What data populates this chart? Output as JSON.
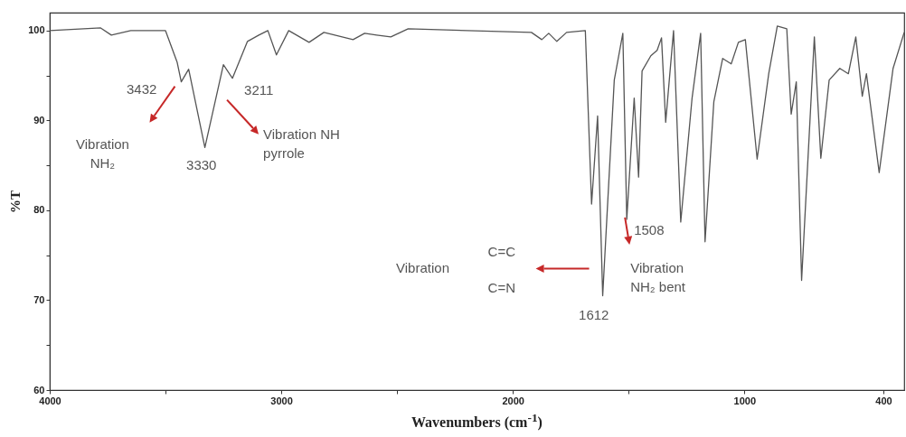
{
  "chart_data": {
    "type": "line",
    "xlabel": "Wavenumbers (cm$^{-1}$)",
    "ylabel": "%T",
    "x": [
      4000,
      3780,
      3734,
      3650,
      3500,
      3450,
      3432,
      3400,
      3330,
      3250,
      3211,
      3146,
      3097,
      3058,
      3021,
      2968,
      2880,
      2816,
      2690,
      2640,
      2588,
      2527,
      2452,
      1920,
      1875,
      1845,
      1810,
      1768,
      1687,
      1660,
      1634,
      1612,
      1562,
      1525,
      1508,
      1476,
      1457,
      1442,
      1404,
      1377,
      1358,
      1340,
      1306,
      1275,
      1226,
      1189,
      1170,
      1132,
      1094,
      1057,
      1026,
      996,
      945,
      895,
      858,
      817,
      798,
      776,
      753,
      698,
      670,
      634,
      588,
      551,
      519,
      491,
      473,
      418,
      358,
      310
    ],
    "values": [
      100,
      100.3,
      99.5,
      100,
      100,
      96.5,
      94.3,
      95.7,
      87,
      96.2,
      94.7,
      98.8,
      99.5,
      100,
      97.3,
      100,
      98.7,
      99.8,
      99,
      99.7,
      99.5,
      99.3,
      100.2,
      99.8,
      99,
      99.7,
      98.8,
      99.8,
      100,
      80.7,
      90.5,
      70.5,
      94.5,
      99.7,
      79,
      92.5,
      83.7,
      95.5,
      97.2,
      97.8,
      99.2,
      89.8,
      100,
      78.7,
      92.5,
      99.7,
      76.5,
      92.1,
      96.9,
      96.3,
      98.7,
      99,
      85.7,
      95.2,
      100.5,
      100.2,
      90.7,
      94.3,
      72.2,
      99.3,
      85.8,
      94.5,
      95.8,
      95.2,
      99.3,
      92.7,
      95.2,
      84.2,
      95.8,
      99.8
    ],
    "color": "#555555",
    "xlim": [
      4000,
      310
    ],
    "ylim": [
      60,
      102
    ],
    "xticks": [
      4000,
      {
        "value": 3500,
        "label": null
      },
      3000,
      {
        "value": 2500,
        "label": null
      },
      2000,
      {
        "value": 1500,
        "label": null
      },
      1000,
      400
    ],
    "yticks": [
      60,
      {
        "value": 65,
        "label": null
      },
      70,
      {
        "value": 75,
        "label": null
      },
      80,
      {
        "value": 85,
        "label": null
      },
      90,
      {
        "value": 95,
        "label": null
      },
      100
    ],
    "annotations": [
      {
        "text": "3432",
        "x": 3432,
        "y": 94.3
      },
      "Vibration NH₂",
      {
        "text": "3330",
        "x": 3330,
        "y": 87
      },
      {
        "text": "3211",
        "x": 3211,
        "y": 94.7
      },
      "Vibration NH pyrrole",
      "Vibration",
      "C=C",
      "C=N",
      {
        "text": "1612",
        "x": 1612,
        "y": 70.5
      },
      {
        "text": "1508",
        "x": 1508,
        "y": 79
      },
      "Vibration NH₂ bent"
    ]
  }
}
